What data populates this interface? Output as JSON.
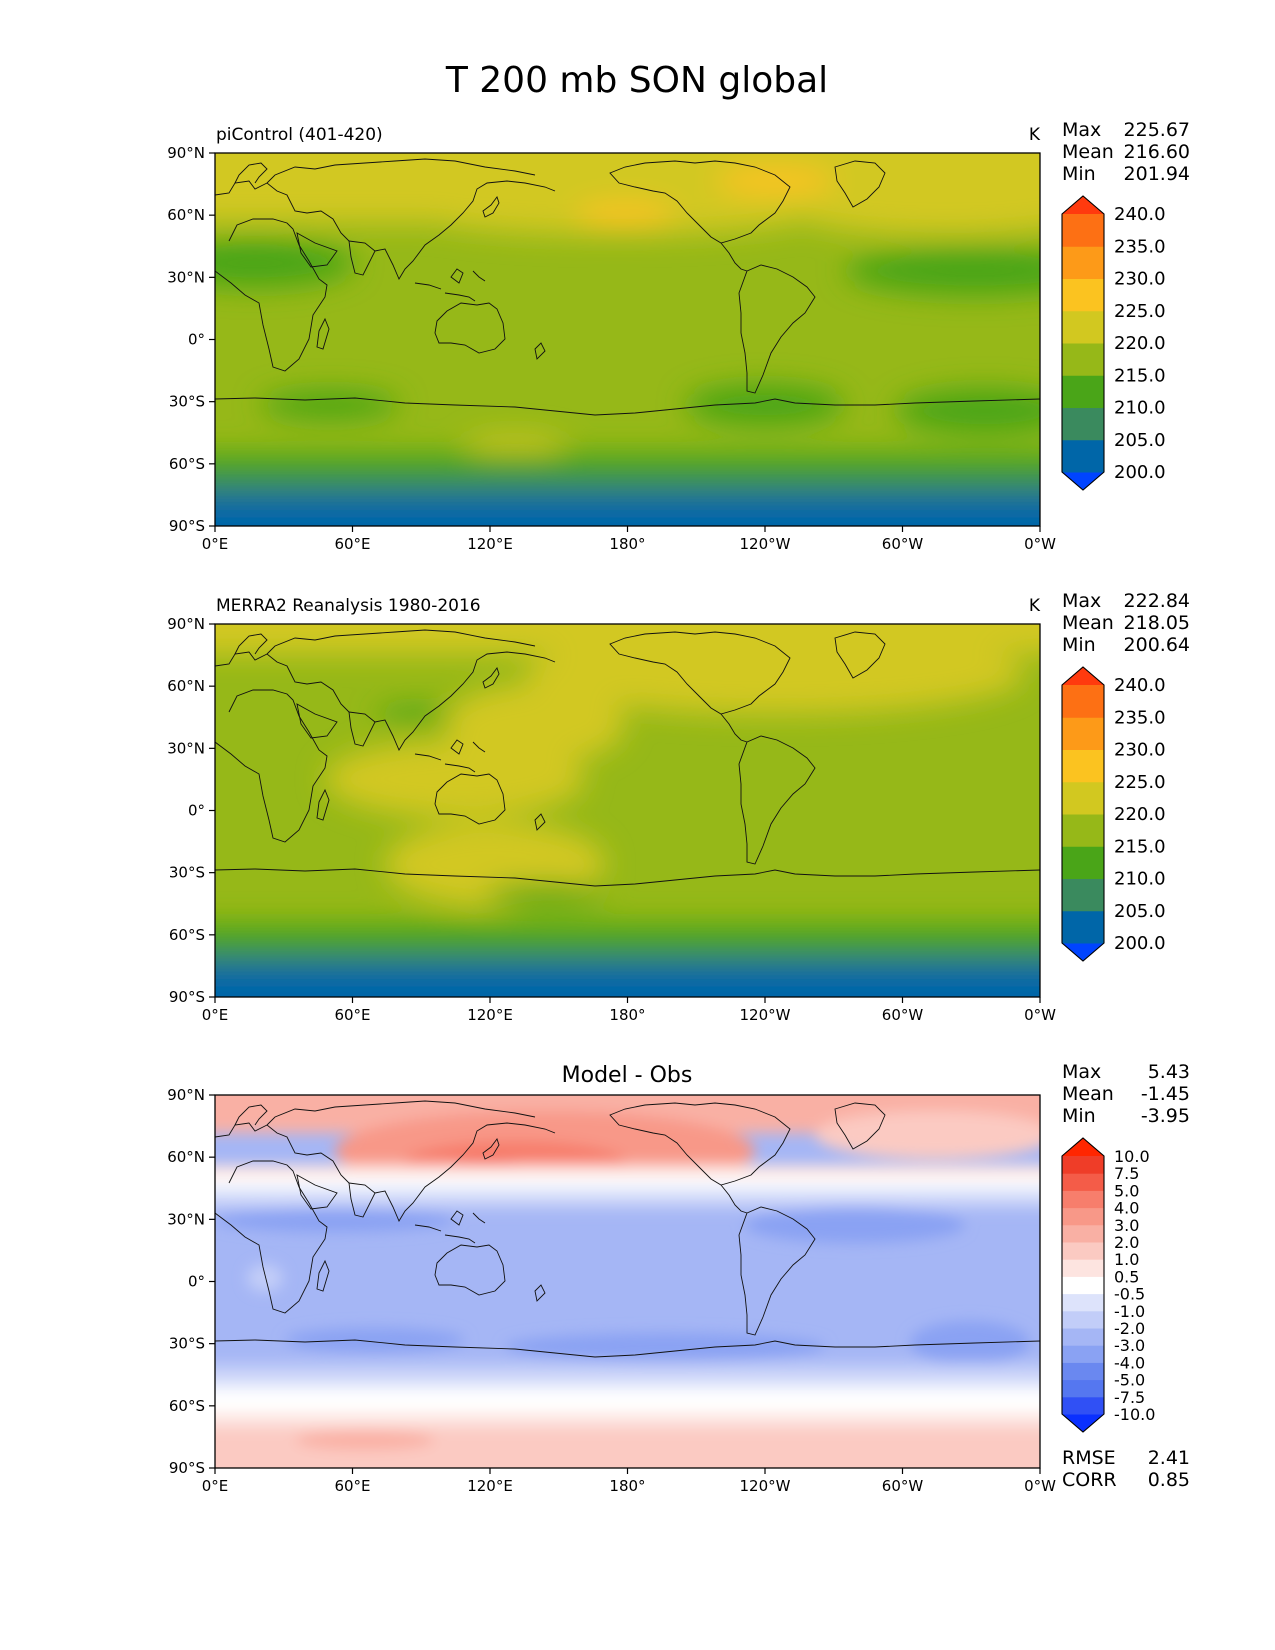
{
  "title": "T 200 mb SON global",
  "x_ticks": [
    "0°E",
    "60°E",
    "120°E",
    "180°",
    "120°W",
    "60°W",
    "0°W"
  ],
  "y_ticks": [
    "90°N",
    "60°N",
    "30°N",
    "0°",
    "30°S",
    "60°S",
    "90°S"
  ],
  "panels": [
    {
      "id": "model",
      "left_title": "piControl (401-420)",
      "center_title": "",
      "unit": "K",
      "stats": [
        {
          "label": "Max",
          "value": "225.67"
        },
        {
          "label": "Mean",
          "value": "216.60"
        },
        {
          "label": "Min",
          "value": "201.94"
        }
      ],
      "colorbar_levels": [
        "200.0",
        "205.0",
        "210.0",
        "215.0",
        "220.0",
        "225.0",
        "230.0",
        "235.0",
        "240.0"
      ],
      "colorbar_colors": [
        "#0044ff",
        "#0066a8",
        "#3a8a5e",
        "#4aa518",
        "#96b818",
        "#d2c820",
        "#fbc320",
        "#fd9a18",
        "#fd7014",
        "#ff3a0e"
      ],
      "footer_stats": []
    },
    {
      "id": "obs",
      "left_title": "MERRA2 Reanalysis 1980-2016",
      "center_title": "",
      "unit": "K",
      "stats": [
        {
          "label": "Max",
          "value": "222.84"
        },
        {
          "label": "Mean",
          "value": "218.05"
        },
        {
          "label": "Min",
          "value": "200.64"
        }
      ],
      "colorbar_levels": [
        "200.0",
        "205.0",
        "210.0",
        "215.0",
        "220.0",
        "225.0",
        "230.0",
        "235.0",
        "240.0"
      ],
      "colorbar_colors": [
        "#0044ff",
        "#0066a8",
        "#3a8a5e",
        "#4aa518",
        "#96b818",
        "#d2c820",
        "#fbc320",
        "#fd9a18",
        "#fd7014",
        "#ff3a0e"
      ],
      "footer_stats": []
    },
    {
      "id": "diff",
      "left_title": "",
      "center_title": "Model - Obs",
      "unit": "",
      "stats": [
        {
          "label": "Max",
          "value": "5.43"
        },
        {
          "label": "Mean",
          "value": "-1.45"
        },
        {
          "label": "Min",
          "value": "-3.95"
        }
      ],
      "colorbar_levels": [
        "-10.0",
        "-7.5",
        "-5.0",
        "-4.0",
        "-3.0",
        "-2.0",
        "-1.0",
        "-0.5",
        "0.5",
        "1.0",
        "2.0",
        "3.0",
        "4.0",
        "5.0",
        "7.5",
        "10.0"
      ],
      "colorbar_colors": [
        "#0a30ff",
        "#3050f5",
        "#5577f0",
        "#6a88f0",
        "#8aa2f3",
        "#a5b6f5",
        "#c2cdf8",
        "#dde3fb",
        "#ffffff",
        "#fde4e0",
        "#fbcac2",
        "#f9b0a4",
        "#f89888",
        "#f77e6c",
        "#f45c48",
        "#ef3d28",
        "#ff2600"
      ],
      "footer_stats": [
        {
          "label": "RMSE",
          "value": "2.41"
        },
        {
          "label": "CORR",
          "value": "0.85"
        }
      ]
    }
  ],
  "chart_data": [
    {
      "type": "heatmap",
      "title": "piControl (401-420)",
      "units": "K",
      "x": [
        "0°E",
        "60°E",
        "120°E",
        "180°",
        "120°W",
        "60°W",
        "0°W"
      ],
      "y": [
        "90°N",
        "60°N",
        "30°N",
        "0°",
        "30°S",
        "60°S",
        "90°S"
      ],
      "zonal_band_values_approx": [
        {
          "lat": 80,
          "value": 222
        },
        {
          "lat": 60,
          "value": 221
        },
        {
          "lat": 30,
          "value": 217
        },
        {
          "lat": 0,
          "value": 217
        },
        {
          "lat": -30,
          "value": 216
        },
        {
          "lat": -55,
          "value": 214
        },
        {
          "lat": -70,
          "value": 209
        },
        {
          "lat": -85,
          "value": 204
        }
      ],
      "stats": {
        "max": 225.67,
        "mean": 216.6,
        "min": 201.94
      },
      "colorbar": [
        200.0,
        205.0,
        210.0,
        215.0,
        220.0,
        225.0,
        230.0,
        235.0,
        240.0
      ]
    },
    {
      "type": "heatmap",
      "title": "MERRA2 Reanalysis 1980-2016",
      "units": "K",
      "x": [
        "0°E",
        "60°E",
        "120°E",
        "180°",
        "120°W",
        "60°W",
        "0°W"
      ],
      "y": [
        "90°N",
        "60°N",
        "30°N",
        "0°",
        "30°S",
        "60°S",
        "90°S"
      ],
      "zonal_band_values_approx": [
        {
          "lat": 80,
          "value": 220
        },
        {
          "lat": 60,
          "value": 218
        },
        {
          "lat": 30,
          "value": 219
        },
        {
          "lat": 0,
          "value": 219
        },
        {
          "lat": -30,
          "value": 219
        },
        {
          "lat": -55,
          "value": 216
        },
        {
          "lat": -70,
          "value": 209
        },
        {
          "lat": -85,
          "value": 203
        }
      ],
      "stats": {
        "max": 222.84,
        "mean": 218.05,
        "min": 200.64
      },
      "colorbar": [
        200.0,
        205.0,
        210.0,
        215.0,
        220.0,
        225.0,
        230.0,
        235.0,
        240.0
      ]
    },
    {
      "type": "heatmap",
      "title": "Model - Obs",
      "x": [
        "0°E",
        "60°E",
        "120°E",
        "180°",
        "120°W",
        "60°W",
        "0°W"
      ],
      "y": [
        "90°N",
        "60°N",
        "30°N",
        "0°",
        "30°S",
        "60°S",
        "90°S"
      ],
      "zonal_band_values_approx": [
        {
          "lat": 80,
          "value": 2.5
        },
        {
          "lat": 60,
          "value": 3.0
        },
        {
          "lat": 45,
          "value": 0
        },
        {
          "lat": 30,
          "value": -2.5
        },
        {
          "lat": 0,
          "value": -2.0
        },
        {
          "lat": -30,
          "value": -2.5
        },
        {
          "lat": -50,
          "value": -0.8
        },
        {
          "lat": -60,
          "value": 0.2
        },
        {
          "lat": -75,
          "value": 1.5
        }
      ],
      "stats": {
        "max": 5.43,
        "mean": -1.45,
        "min": -3.95,
        "rmse": 2.41,
        "corr": 0.85
      },
      "colorbar": [
        -10.0,
        -7.5,
        -5.0,
        -4.0,
        -3.0,
        -2.0,
        -1.0,
        -0.5,
        0.5,
        1.0,
        2.0,
        3.0,
        4.0,
        5.0,
        7.5,
        10.0
      ]
    }
  ]
}
